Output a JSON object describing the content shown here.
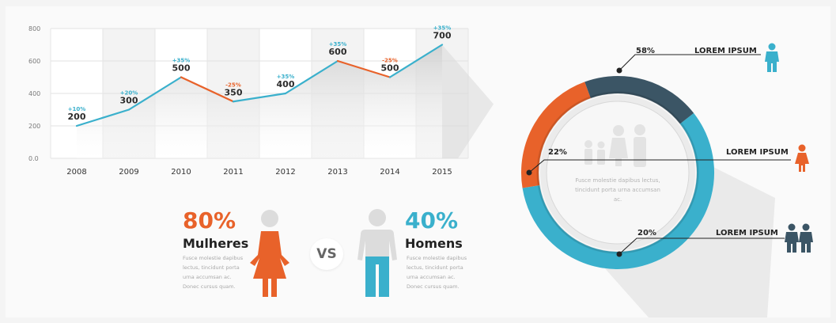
{
  "chart_data": [
    {
      "type": "line",
      "x": [
        "2008",
        "2009",
        "2010",
        "2011",
        "2012",
        "2013",
        "2014",
        "2015"
      ],
      "values": [
        200,
        300,
        500,
        350,
        400,
        600,
        500,
        700
      ],
      "changes": [
        "+10%",
        "+20%",
        "+35%",
        "-25%",
        "+35%",
        "+35%",
        "-25%",
        "+35%"
      ],
      "change_colors": [
        "#3ab0cc",
        "#3ab0cc",
        "#3ab0cc",
        "#e8622a",
        "#3ab0cc",
        "#3ab0cc",
        "#e8622a",
        "#3ab0cc"
      ],
      "y_ticks": [
        "0.0",
        "200",
        "400",
        "600",
        "800"
      ],
      "ylim": [
        0,
        800
      ],
      "grid": true,
      "title": "",
      "xlabel": "",
      "ylabel": ""
    },
    {
      "type": "pie",
      "categories": [
        "LOREM IPSUM",
        "LOREM IPSUM",
        "LOREM IPSUM"
      ],
      "values": [
        58,
        22,
        20
      ],
      "labels": [
        "58%",
        "22%",
        "20%"
      ],
      "colors": [
        "#3ab0cc",
        "#e8622a",
        "#3b5565"
      ],
      "icons": [
        "man-icon",
        "woman-icon",
        "couple-icon"
      ],
      "center_text": "Fusce molestie dapibus lectus, tincidunt porta urna accumsan ac."
    }
  ],
  "comparison": {
    "women": {
      "percent": "80%",
      "label": "Mulheres",
      "text": [
        "Fusce molestie dapibus",
        "lectus, tincidunt porta",
        "urna accumsan ac.",
        "Donec cursus quam."
      ],
      "color": "#e8622a",
      "icon": "woman-icon"
    },
    "vs": "VS",
    "men": {
      "percent": "40%",
      "label": "Homens",
      "text": [
        "Fusce molestie dapibus",
        "lectus, tincidunt porta",
        "urna accumsan ac.",
        "Donec cursus quam."
      ],
      "color": "#3ab0cc",
      "icon": "man-icon"
    }
  },
  "colors": {
    "accent_blue": "#3ab0cc",
    "accent_orange": "#e8622a",
    "dark_slate": "#3b5565",
    "icon_grey": "#dcdcdc"
  }
}
